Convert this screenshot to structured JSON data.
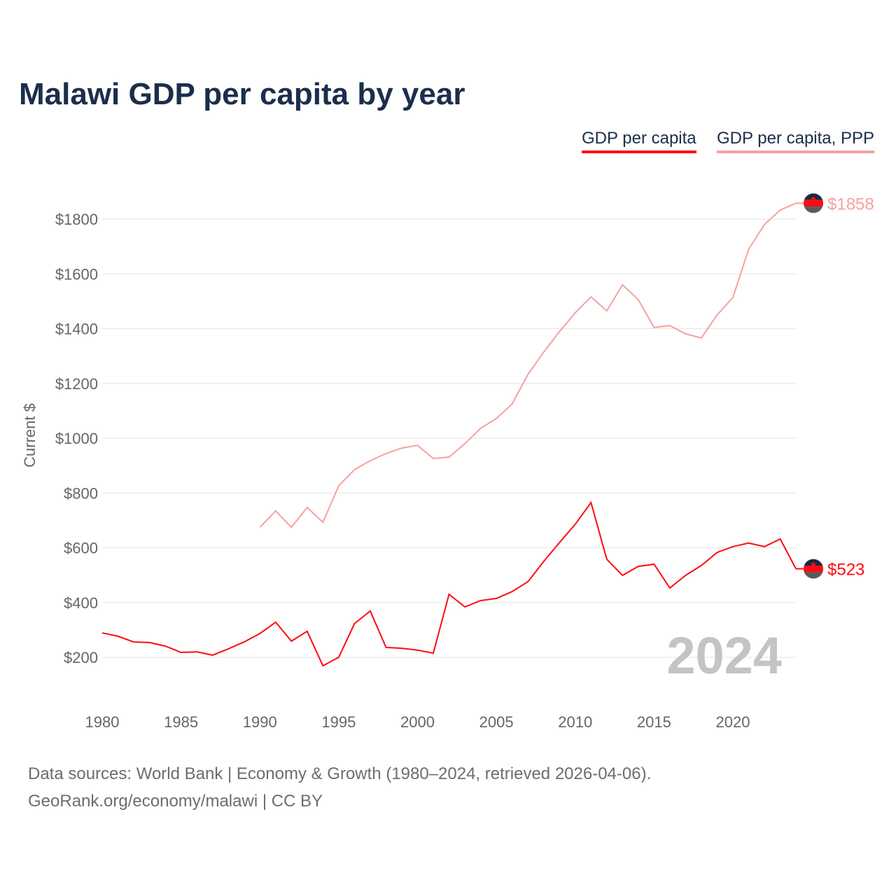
{
  "title": "Malawi GDP per capita by year",
  "legend": [
    "GDP per capita",
    "GDP per capita, PPP"
  ],
  "year_label": "2024",
  "footer": [
    "Data sources: World Bank | Economy & Growth (1980–2024, retrieved 2026-04-06).",
    "GeoRank.org/economy/malawi | CC BY"
  ],
  "end_labels": {
    "gdp": "$523",
    "ppp": "$1858"
  },
  "colors": {
    "gdp": "#ff0a14",
    "ppp": "#f7a0a0"
  },
  "chart_data": {
    "type": "line",
    "title": "Malawi GDP per capita by year",
    "xlabel": "",
    "ylabel": "Current $",
    "xlim": [
      1980,
      2024
    ],
    "ylim": [
      100,
      1900
    ],
    "xticks": [
      1980,
      1985,
      1990,
      1995,
      2000,
      2005,
      2010,
      2015,
      2020
    ],
    "yticks": [
      200,
      400,
      600,
      800,
      1000,
      1200,
      1400,
      1600,
      1800
    ],
    "ytick_labels": [
      "$200",
      "$400",
      "$600",
      "$800",
      "$1000",
      "$1200",
      "$1400",
      "$1600",
      "$1800"
    ],
    "grid": true,
    "legend_position": "top-right",
    "series": [
      {
        "name": "GDP per capita",
        "x_start": 1980,
        "values": [
          289,
          277,
          256,
          254,
          241,
          218,
          220,
          208,
          231,
          256,
          287,
          328,
          259,
          295,
          169,
          200,
          323,
          369,
          236,
          233,
          226,
          215,
          430,
          384,
          407,
          415,
          440,
          476,
          550,
          619,
          686,
          765,
          558,
          499,
          532,
          540,
          453,
          499,
          535,
          583,
          604,
          617,
          604,
          632,
          523
        ]
      },
      {
        "name": "GDP per capita, PPP",
        "x_start": 1990,
        "values": [
          675,
          734,
          675,
          747,
          693,
          826,
          885,
          918,
          944,
          964,
          974,
          926,
          931,
          980,
          1036,
          1072,
          1125,
          1233,
          1314,
          1389,
          1458,
          1516,
          1465,
          1560,
          1506,
          1404,
          1411,
          1381,
          1366,
          1450,
          1514,
          1690,
          1780,
          1833,
          1858
        ]
      }
    ]
  }
}
